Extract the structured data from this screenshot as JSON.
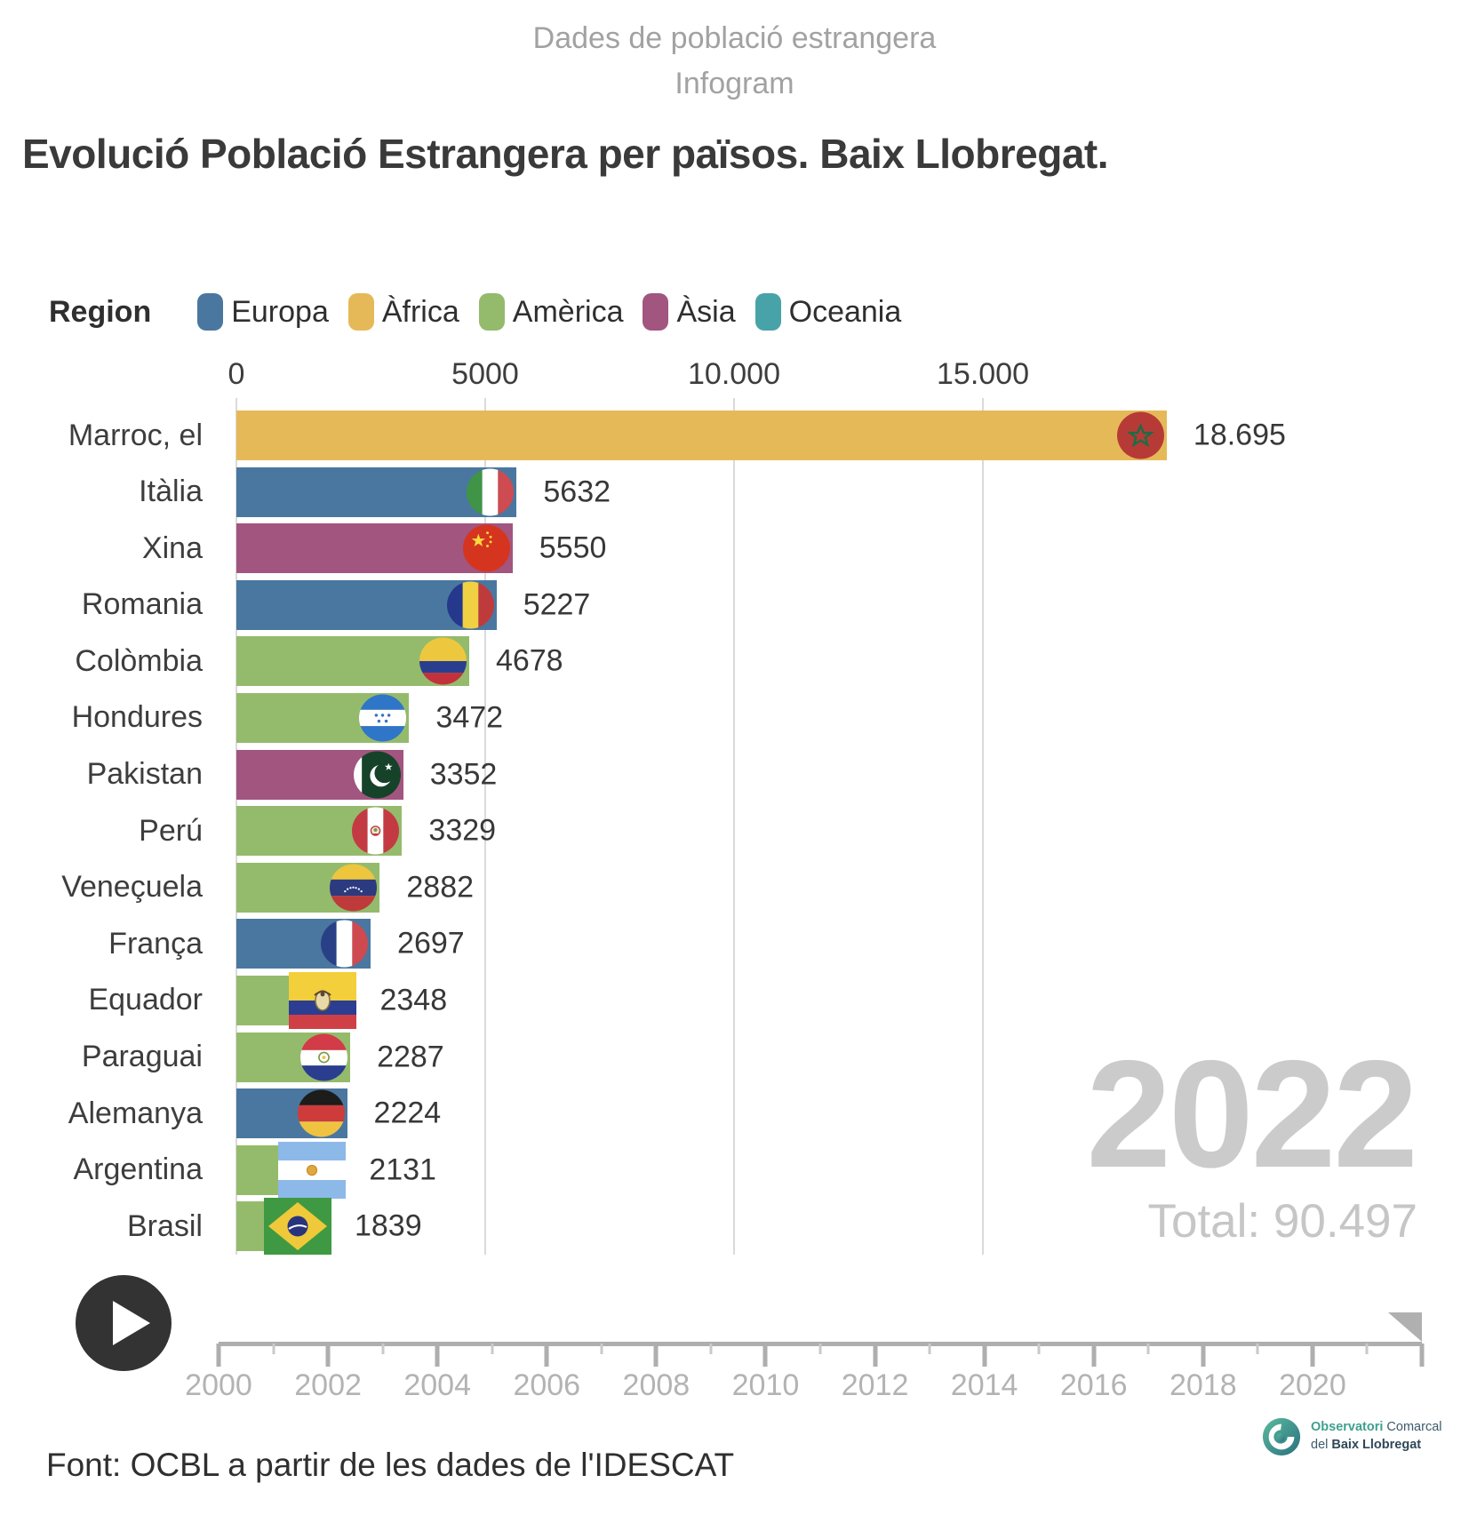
{
  "header": {
    "subtitle_line1": "Dades de població estrangera",
    "subtitle_line2": "Infogram",
    "title": "Evolució Població Estrangera per països. Baix Llobregat."
  },
  "colors": {
    "europa": "#4a779f",
    "africa": "#e6b958",
    "america": "#94bb6c",
    "asia": "#a2557e",
    "oceania": "#48a3a9",
    "grid": "#dadada",
    "big_year": "#cbcbcb",
    "total": "#c6c6c6",
    "timeline": "#aeaeae",
    "play_button": "#333333"
  },
  "legend": {
    "title": "Region",
    "items": [
      {
        "label": "Europa",
        "key": "europa"
      },
      {
        "label": "Àfrica",
        "key": "africa"
      },
      {
        "label": "Amèrica",
        "key": "america"
      },
      {
        "label": "Àsia",
        "key": "asia"
      },
      {
        "label": "Oceania",
        "key": "oceania"
      }
    ]
  },
  "chart_data": {
    "type": "bar",
    "orientation": "horizontal",
    "title": "Evolució Població Estrangera per països. Baix Llobregat.",
    "legend_position": "top",
    "grid": true,
    "x_axis": {
      "ticks": [
        0,
        5000,
        10000,
        15000
      ],
      "tick_labels": [
        "0",
        "5000",
        "10.000",
        "15.000"
      ],
      "xlim": [
        0,
        19286
      ]
    },
    "year": "2022",
    "total_value": 90497,
    "total_display": "Total: 90.497",
    "rows": [
      {
        "label": "Marroc, el",
        "value": 18695,
        "display": "18.695",
        "region": "africa",
        "region_label": "Àfrica",
        "flag": "morocco-flag"
      },
      {
        "label": "Itàlia",
        "value": 5632,
        "display": "5632",
        "region": "europa",
        "region_label": "Europa",
        "flag": "italy-flag"
      },
      {
        "label": "Xina",
        "value": 5550,
        "display": "5550",
        "region": "asia",
        "region_label": "Àsia",
        "flag": "china-flag"
      },
      {
        "label": "Romania",
        "value": 5227,
        "display": "5227",
        "region": "europa",
        "region_label": "Europa",
        "flag": "romania-flag"
      },
      {
        "label": "Colòmbia",
        "value": 4678,
        "display": "4678",
        "region": "america",
        "region_label": "Amèrica",
        "flag": "colombia-flag"
      },
      {
        "label": "Hondures",
        "value": 3472,
        "display": "3472",
        "region": "america",
        "region_label": "Amèrica",
        "flag": "honduras-flag"
      },
      {
        "label": "Pakistan",
        "value": 3352,
        "display": "3352",
        "region": "asia",
        "region_label": "Àsia",
        "flag": "pakistan-flag"
      },
      {
        "label": "Perú",
        "value": 3329,
        "display": "3329",
        "region": "america",
        "region_label": "Amèrica",
        "flag": "peru-flag"
      },
      {
        "label": "Veneçuela",
        "value": 2882,
        "display": "2882",
        "region": "america",
        "region_label": "Amèrica",
        "flag": "venezuela-flag"
      },
      {
        "label": "França",
        "value": 2697,
        "display": "2697",
        "region": "europa",
        "region_label": "Europa",
        "flag": "france-flag"
      },
      {
        "label": "Equador",
        "value": 2348,
        "display": "2348",
        "region": "america",
        "region_label": "Amèrica",
        "flag": "ecuador-flag"
      },
      {
        "label": "Paraguai",
        "value": 2287,
        "display": "2287",
        "region": "america",
        "region_label": "Amèrica",
        "flag": "paraguay-flag"
      },
      {
        "label": "Alemanya",
        "value": 2224,
        "display": "2224",
        "region": "europa",
        "region_label": "Europa",
        "flag": "germany-flag"
      },
      {
        "label": "Argentina",
        "value": 2131,
        "display": "2131",
        "region": "america",
        "region_label": "Amèrica",
        "flag": "argentina-flag"
      },
      {
        "label": "Brasil",
        "value": 1839,
        "display": "1839",
        "region": "america",
        "region_label": "Amèrica",
        "flag": "brazil-flag"
      }
    ]
  },
  "timeline": {
    "start_year": 2000,
    "end_year": 2022,
    "label_step": 2,
    "labels": [
      "2000",
      "2002",
      "2004",
      "2006",
      "2008",
      "2010",
      "2012",
      "2014",
      "2016",
      "2018",
      "2020"
    ]
  },
  "footer": {
    "source": "Font: OCBL a partir de les dades de l'IDESCAT"
  },
  "logo": {
    "line1_strong": "Observatori",
    "line1_rest": " Comarcal",
    "line2_pre": "del ",
    "line2_strong": "Baix Llobregat"
  }
}
